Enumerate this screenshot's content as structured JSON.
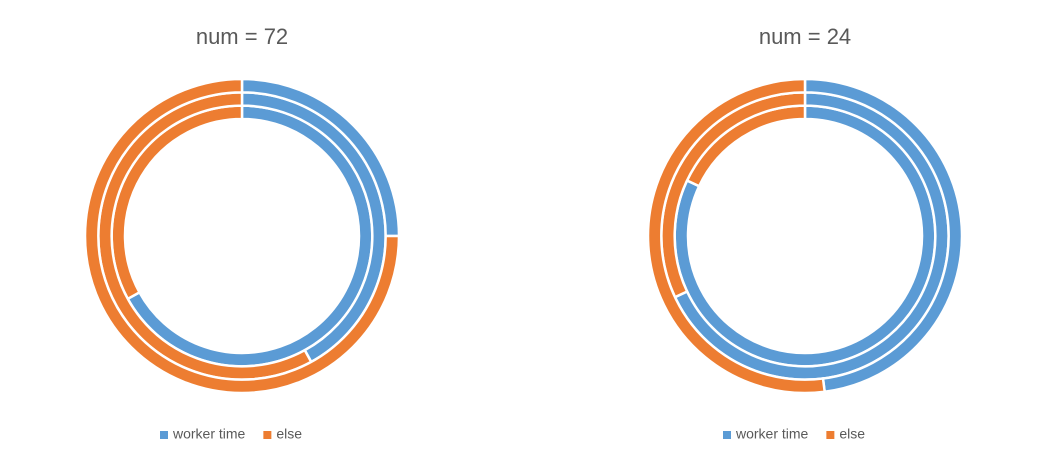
{
  "chart_data": [
    {
      "type": "doughnut",
      "title": "num = 72",
      "categories": [
        "worker time",
        "else"
      ],
      "colors": [
        "#5b9bd5",
        "#ed7d31"
      ],
      "series": [
        {
          "values": [
            67,
            33
          ]
        },
        {
          "values": [
            42,
            58
          ]
        },
        {
          "values": [
            25,
            75
          ]
        }
      ],
      "legend": "bottom"
    },
    {
      "type": "doughnut",
      "title": "num = 24",
      "categories": [
        "worker time",
        "else"
      ],
      "colors": [
        "#5b9bd5",
        "#ed7d31"
      ],
      "series": [
        {
          "values": [
            82,
            18
          ]
        },
        {
          "values": [
            68,
            32
          ]
        },
        {
          "values": [
            48,
            52
          ]
        }
      ],
      "legend": "bottom"
    }
  ]
}
